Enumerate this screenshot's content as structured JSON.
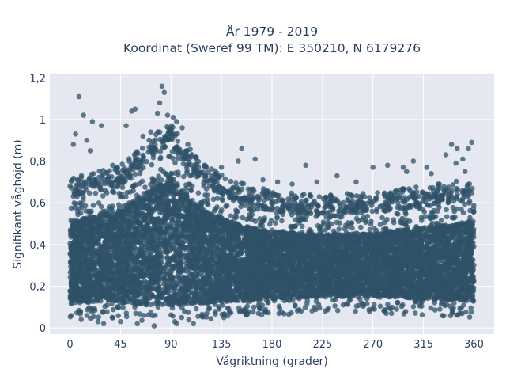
{
  "chart_data": {
    "type": "scatter",
    "title_line1": "År 1979 - 2019",
    "title_line2": "Koordinat (Sweref 99 TM): E 350210, N 6179276",
    "xlabel": "Vågriktning (grader)",
    "ylabel": "Signifikant våghöjd (m)",
    "xlim": [
      -18,
      378
    ],
    "ylim": [
      -0.03,
      1.22
    ],
    "xticks": [
      0,
      45,
      90,
      135,
      180,
      225,
      270,
      315,
      360
    ],
    "xtick_labels": [
      "0",
      "45",
      "90",
      "135",
      "180",
      "225",
      "270",
      "315",
      "360"
    ],
    "yticks": [
      0,
      0.2,
      0.4,
      0.6,
      0.8,
      1,
      1.2
    ],
    "ytick_labels": [
      "0",
      "0,2",
      "0,4",
      "0,6",
      "0,8",
      "1",
      "1,2"
    ],
    "grid": true,
    "marker_color": "#2f5168",
    "background_color": "#e5e8f0",
    "dense_band": [
      {
        "x": 0,
        "low": 0.05,
        "high": 0.62
      },
      {
        "x": 45,
        "low": 0.04,
        "high": 0.68
      },
      {
        "x": 60,
        "low": 0.03,
        "high": 0.75
      },
      {
        "x": 80,
        "low": 0.03,
        "high": 0.85
      },
      {
        "x": 90,
        "low": 0.03,
        "high": 0.88
      },
      {
        "x": 100,
        "low": 0.03,
        "high": 0.8
      },
      {
        "x": 120,
        "low": 0.04,
        "high": 0.68
      },
      {
        "x": 150,
        "low": 0.05,
        "high": 0.6
      },
      {
        "x": 180,
        "low": 0.06,
        "high": 0.56
      },
      {
        "x": 225,
        "low": 0.07,
        "high": 0.54
      },
      {
        "x": 270,
        "low": 0.07,
        "high": 0.55
      },
      {
        "x": 315,
        "low": 0.06,
        "high": 0.58
      },
      {
        "x": 360,
        "low": 0.05,
        "high": 0.62
      }
    ],
    "outliers": [
      {
        "x": 8,
        "y": 1.11
      },
      {
        "x": 12,
        "y": 1.02
      },
      {
        "x": 20,
        "y": 0.99
      },
      {
        "x": 15,
        "y": 0.9
      },
      {
        "x": 28,
        "y": 0.97
      },
      {
        "x": 5,
        "y": 0.93
      },
      {
        "x": 3,
        "y": 0.88
      },
      {
        "x": 18,
        "y": 0.85
      },
      {
        "x": 38,
        "y": 0.78
      },
      {
        "x": 50,
        "y": 0.97
      },
      {
        "x": 55,
        "y": 1.04
      },
      {
        "x": 58,
        "y": 1.05
      },
      {
        "x": 65,
        "y": 0.92
      },
      {
        "x": 72,
        "y": 0.94
      },
      {
        "x": 78,
        "y": 1.03
      },
      {
        "x": 80,
        "y": 1.08
      },
      {
        "x": 82,
        "y": 1.16
      },
      {
        "x": 84,
        "y": 1.13
      },
      {
        "x": 87,
        "y": 1.02
      },
      {
        "x": 92,
        "y": 1.01
      },
      {
        "x": 95,
        "y": 0.99
      },
      {
        "x": 100,
        "y": 0.96
      },
      {
        "x": 105,
        "y": 0.88
      },
      {
        "x": 112,
        "y": 0.82
      },
      {
        "x": 120,
        "y": 0.78
      },
      {
        "x": 135,
        "y": 0.77
      },
      {
        "x": 150,
        "y": 0.8
      },
      {
        "x": 153,
        "y": 0.86
      },
      {
        "x": 165,
        "y": 0.81
      },
      {
        "x": 172,
        "y": 0.71
      },
      {
        "x": 185,
        "y": 0.7
      },
      {
        "x": 198,
        "y": 0.69
      },
      {
        "x": 210,
        "y": 0.78
      },
      {
        "x": 220,
        "y": 0.7
      },
      {
        "x": 238,
        "y": 0.73
      },
      {
        "x": 255,
        "y": 0.7
      },
      {
        "x": 270,
        "y": 0.77
      },
      {
        "x": 283,
        "y": 0.78
      },
      {
        "x": 297,
        "y": 0.77
      },
      {
        "x": 300,
        "y": 0.75
      },
      {
        "x": 306,
        "y": 0.8
      },
      {
        "x": 318,
        "y": 0.77
      },
      {
        "x": 322,
        "y": 0.74
      },
      {
        "x": 335,
        "y": 0.83
      },
      {
        "x": 340,
        "y": 0.88
      },
      {
        "x": 345,
        "y": 0.86
      },
      {
        "x": 350,
        "y": 0.81
      },
      {
        "x": 355,
        "y": 0.86
      },
      {
        "x": 358,
        "y": 0.89
      },
      {
        "x": 352,
        "y": 0.75
      },
      {
        "x": 344,
        "y": 0.79
      },
      {
        "x": 328,
        "y": 0.68
      },
      {
        "x": 10,
        "y": 0.04
      },
      {
        "x": 25,
        "y": 0.03
      },
      {
        "x": 45,
        "y": 0.03
      },
      {
        "x": 60,
        "y": 0.02
      },
      {
        "x": 75,
        "y": 0.01
      },
      {
        "x": 95,
        "y": 0.02
      },
      {
        "x": 110,
        "y": 0.02
      },
      {
        "x": 30,
        "y": 0.02
      }
    ]
  }
}
